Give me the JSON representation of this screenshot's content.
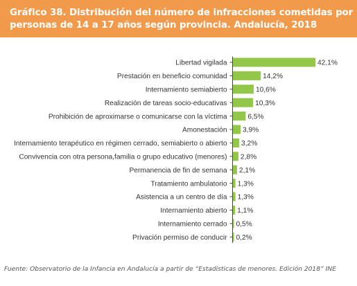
{
  "header": {
    "title_line1": "Gráfico 38. Distribución del número de infracciones cometidas por",
    "title_line2": "personas de 14 a 17 años según provincia. Andalucía, 2018"
  },
  "chart_data": {
    "type": "bar",
    "orientation": "horizontal",
    "categories": [
      "Libertad vigilada",
      "Prestación en beneficio comunidad",
      "Internamiento semiabierto",
      "Realización de tareas socio-educativas",
      "Prohibición de aproximarse o comunicarse con la víctima",
      "Amonestación",
      "Internamiento terapéutico en régimen cerrado, semiabierto o abierto",
      "Convivencia con otra persona,familia o grupo educativo (menores)",
      "Permanencia de fin de semana",
      "Tratamiento ambulatorio",
      "Asistencia a un centro de día",
      "Internamiento abierto",
      "Internamiento cerrado",
      "Privación permiso de conducir"
    ],
    "values": [
      42.1,
      14.2,
      10.6,
      10.3,
      6.5,
      3.9,
      3.2,
      2.8,
      2.1,
      1.3,
      1.3,
      1.1,
      0.5,
      0.2
    ],
    "value_labels": [
      "42,1%",
      "14,2%",
      "10,6%",
      "10,3%",
      "6,5%",
      "3,9%",
      "3,2%",
      "2,8%",
      "2,1%",
      "1,3%",
      "1,3%",
      "1,1%",
      "0,5%",
      "0,2%"
    ],
    "xlim": [
      0,
      42.1
    ],
    "grid": false,
    "legend": false,
    "bar_color": "#92c74a"
  },
  "source": "Fuente: Observatorio de la Infancia en Andalucía a partir de “Estadísticas de menores. Edición 2018” INE",
  "colors": {
    "header_bg": "#f29a4c",
    "axis_line": "#444444"
  }
}
